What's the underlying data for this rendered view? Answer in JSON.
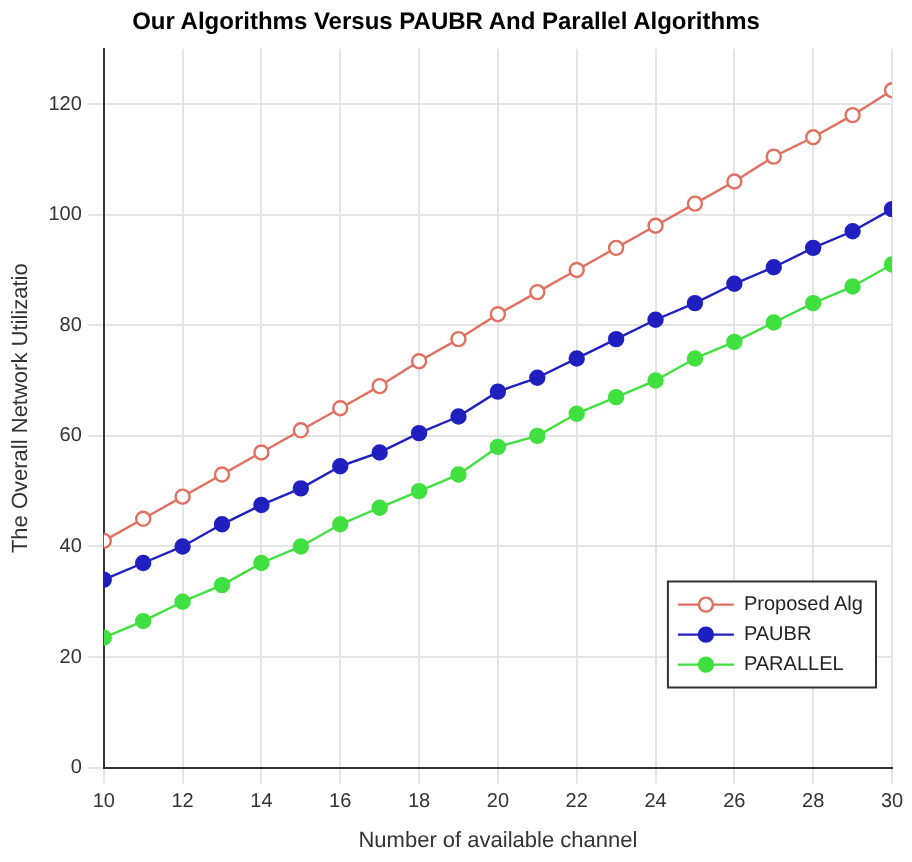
{
  "chart_data": {
    "type": "line",
    "title": "Our Algorithms Versus PAUBR And Parallel Algorithms",
    "xlabel": "Number of available channel",
    "ylabel": "The Overall Network Utilizatio",
    "x": [
      10,
      11,
      12,
      13,
      14,
      15,
      16,
      17,
      18,
      19,
      20,
      21,
      22,
      23,
      24,
      25,
      26,
      27,
      28,
      29,
      30
    ],
    "series": [
      {
        "name": "Proposed Alg",
        "color": "#e07060",
        "values": [
          41,
          45,
          49,
          53,
          57,
          61,
          65,
          69,
          73.5,
          77.5,
          82,
          86,
          90,
          94,
          98,
          102,
          106,
          110.5,
          114,
          118,
          122.5
        ]
      },
      {
        "name": "PAUBR",
        "color": "#2020c0",
        "values": [
          34,
          37,
          40,
          44,
          47.5,
          50.5,
          54.5,
          57,
          60.5,
          63.5,
          68,
          70.5,
          74,
          77.5,
          81,
          84,
          87.5,
          90.5,
          94,
          97,
          101
        ]
      },
      {
        "name": "PARALLEL",
        "color": "#40e040",
        "values": [
          23.5,
          26.5,
          30,
          33,
          37,
          40,
          44,
          47,
          50,
          53,
          58,
          60,
          64,
          67,
          70,
          74,
          77,
          80.5,
          84,
          87,
          91
        ]
      }
    ],
    "xlim": [
      10,
      30
    ],
    "xticks": [
      10,
      12,
      14,
      16,
      18,
      20,
      22,
      24,
      26,
      28,
      30
    ],
    "ylim": [
      0,
      130
    ],
    "yticks": [
      0,
      20,
      40,
      60,
      80,
      100,
      120
    ],
    "grid": true,
    "legend": "bottom right",
    "marker": "circle",
    "line_style": "solid"
  }
}
